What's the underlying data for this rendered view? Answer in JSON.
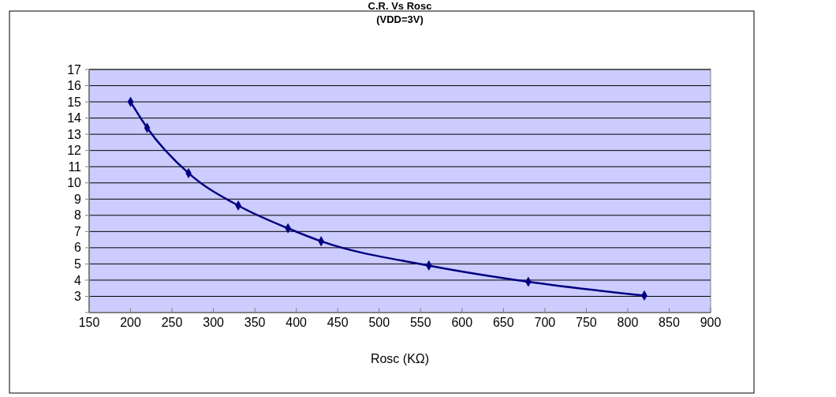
{
  "chart_data": {
    "type": "line",
    "title": "C.R.  Vs  Rosc",
    "subtitle": "(VDD=3V)",
    "xlabel": "Rosc (KΩ)",
    "x": [
      200,
      220,
      270,
      330,
      390,
      430,
      560,
      680,
      820
    ],
    "series": [
      {
        "color": "#000080",
        "values": [
          15,
          13.4,
          10.6,
          8.6,
          7.2,
          6.4,
          4.9,
          3.9,
          3.05
        ]
      }
    ],
    "xlim": [
      150,
      900
    ],
    "xticks": [
      150,
      200,
      250,
      300,
      350,
      400,
      450,
      500,
      550,
      600,
      650,
      700,
      750,
      800,
      850,
      900
    ],
    "ylim": [
      2,
      17
    ],
    "yticks": [
      {
        "value": 2,
        "label": null
      },
      3,
      4,
      5,
      6,
      7,
      8,
      9,
      10,
      11,
      12,
      13,
      14,
      15,
      16,
      17
    ],
    "grid": "y",
    "marker": "diamond",
    "line_style": "solid"
  }
}
